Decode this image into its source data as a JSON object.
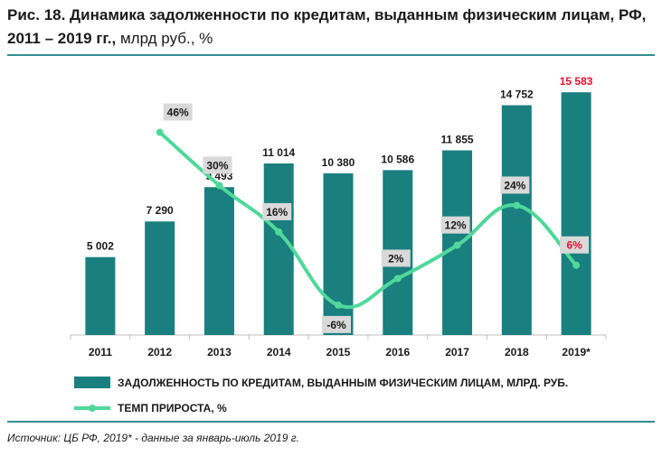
{
  "header": {
    "title": "Рис. 18. Динамика задолженности по кредитам, выданным физическим лицам, РФ, 2011 – 2019 гг.,",
    "unit": "млрд руб., %"
  },
  "footer": {
    "source": "Источник: ЦБ РФ, 2019* - данные за январь-июль 2019 г."
  },
  "chart_data": {
    "type": "bar",
    "categories": [
      "2011",
      "2012",
      "2013",
      "2014",
      "2015",
      "2016",
      "2017",
      "2018",
      "2019*"
    ],
    "series": [
      {
        "name": "ЗАДОЛЖЕННОСТЬ ПО КРЕДИТАМ, ВЫДАННЫМ ФИЗИЧЕСКИМ ЛИЦАМ, МЛРД. РУБ.",
        "type": "bar",
        "values": [
          5002,
          7290,
          9493,
          11014,
          10380,
          10586,
          11855,
          14752,
          15583
        ],
        "labels": [
          "5 002",
          "7 290",
          "9 493",
          "11 014",
          "10 380",
          "10 586",
          "11 855",
          "14 752",
          "15 583"
        ],
        "color": "#1a7f7f"
      },
      {
        "name": "ТЕМП ПРИРОСТА, %",
        "type": "line",
        "values": [
          null,
          46,
          30,
          16,
          -6,
          2,
          12,
          24,
          6
        ],
        "labels": [
          "",
          "46%",
          "30%",
          "16%",
          "-6%",
          "2%",
          "12%",
          "24%",
          "6%"
        ],
        "color": "#4fd89a"
      }
    ],
    "highlight_color": "#e8112d",
    "highlight_index": 8,
    "label_box_color": "#d9d9d9",
    "y_bar_range": [
      0,
      16000
    ],
    "y_growth_range": [
      -15,
      60
    ],
    "grid": false,
    "legend_position": "bottom"
  }
}
